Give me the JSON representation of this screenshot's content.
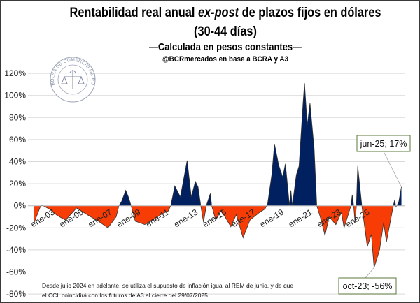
{
  "title": {
    "line1_pre": "Rentabilidad real anual ",
    "line1_italic": "ex-post",
    "line1_post": " de plazos fijos en dólares",
    "line2": "(30-44 días)",
    "subtitle": "—Calculada en pesos constantes—",
    "source": "@BCRmercados  en base a BCRA y A3"
  },
  "logo": {
    "text": "BOLSA DE COMERCIO DE ROSARIO"
  },
  "footnote": {
    "line1": "Desde julio 2024 en adelante, se utiliza el supuesto de inflación igual al REM de junio, y de que",
    "line2": "el CCL coincidirá con los futuros de A3 al cierre del  29/07/2025"
  },
  "colors": {
    "positive": "#002060",
    "negative": "#F83C06",
    "grid": "#d9d9d9",
    "annotation_border": "#5a7a3a"
  },
  "chart_data": {
    "type": "area",
    "title": "Rentabilidad real anual ex-post de plazos fijos en dólares (30-44 días)",
    "ylim": [
      -80,
      120
    ],
    "yticks": [
      -80,
      -60,
      -40,
      -20,
      0,
      20,
      40,
      60,
      80,
      100,
      120
    ],
    "ytick_labels": [
      "-80%",
      "-60%",
      "-40%",
      "-20%",
      "0%",
      "20%",
      "40%",
      "60%",
      "80%",
      "100%",
      "120%"
    ],
    "xtick_labels": [
      "ene-03",
      "ene-05",
      "ene-07",
      "ene-09",
      "ene-11",
      "ene-13",
      "ene-15",
      "ene-17",
      "ene-19",
      "ene-21",
      "ene-23",
      "ene-25"
    ],
    "grid": true,
    "unit": "%",
    "points": [
      [
        "2003-01",
        -15
      ],
      [
        "2003-06",
        1
      ],
      [
        "2003-12",
        -3
      ],
      [
        "2004-06",
        -9
      ],
      [
        "2004-12",
        -13
      ],
      [
        "2005-08",
        -2
      ],
      [
        "2006-05",
        -9
      ],
      [
        "2006-12",
        -14
      ],
      [
        "2007-07",
        -20
      ],
      [
        "2008-01",
        -10
      ],
      [
        "2008-03",
        0
      ],
      [
        "2008-05",
        4
      ],
      [
        "2008-08",
        14
      ],
      [
        "2008-10",
        8
      ],
      [
        "2008-12",
        0
      ],
      [
        "2009-03",
        -14
      ],
      [
        "2009-10",
        -17
      ],
      [
        "2010-05",
        -12
      ],
      [
        "2010-11",
        -7
      ],
      [
        "2011-03",
        -5
      ],
      [
        "2011-05",
        0
      ],
      [
        "2011-08",
        18
      ],
      [
        "2011-12",
        8
      ],
      [
        "2012-05",
        41
      ],
      [
        "2012-08",
        8
      ],
      [
        "2012-11",
        22
      ],
      [
        "2013-01",
        17
      ],
      [
        "2013-03",
        0
      ],
      [
        "2013-05",
        -15
      ],
      [
        "2013-07",
        0
      ],
      [
        "2013-10",
        11
      ],
      [
        "2013-11",
        0
      ],
      [
        "2014-02",
        -13
      ],
      [
        "2014-06",
        -4
      ],
      [
        "2015-01",
        -19
      ],
      [
        "2015-05",
        -8
      ],
      [
        "2015-10",
        -29
      ],
      [
        "2016-03",
        -13
      ],
      [
        "2016-10",
        -6
      ],
      [
        "2017-02",
        -3
      ],
      [
        "2017-04",
        2
      ],
      [
        "2017-07",
        28
      ],
      [
        "2017-09",
        56
      ],
      [
        "2017-12",
        37
      ],
      [
        "2018-03",
        26
      ],
      [
        "2018-05",
        38
      ],
      [
        "2018-08",
        0
      ],
      [
        "2018-09",
        14
      ],
      [
        "2018-10",
        0
      ],
      [
        "2019-01",
        28
      ],
      [
        "2019-03",
        36
      ],
      [
        "2019-06",
        94
      ],
      [
        "2019-07",
        111
      ],
      [
        "2019-09",
        73
      ],
      [
        "2019-11",
        93
      ],
      [
        "2020-02",
        52
      ],
      [
        "2020-04",
        0
      ],
      [
        "2020-07",
        -12
      ],
      [
        "2020-10",
        -27
      ],
      [
        "2021-01",
        -10
      ],
      [
        "2021-06",
        -17
      ],
      [
        "2021-10",
        -6
      ],
      [
        "2021-12",
        -20
      ],
      [
        "2022-03",
        -8
      ],
      [
        "2022-05",
        0
      ],
      [
        "2022-06",
        10
      ],
      [
        "2022-07",
        0
      ],
      [
        "2022-08",
        -15
      ],
      [
        "2022-09",
        0
      ],
      [
        "2022-10",
        36
      ],
      [
        "2023-01",
        0
      ],
      [
        "2023-05",
        -37
      ],
      [
        "2023-08",
        -26
      ],
      [
        "2023-10",
        -56
      ],
      [
        "2024-02",
        -40
      ],
      [
        "2024-05",
        -15
      ],
      [
        "2024-07",
        -33
      ],
      [
        "2024-12",
        0
      ],
      [
        "2025-01",
        5
      ],
      [
        "2025-02",
        -1
      ],
      [
        "2025-04",
        3
      ],
      [
        "2025-06",
        17
      ]
    ],
    "annotations": [
      {
        "label": "jun-25; 17%",
        "date": "2025-06",
        "value": 17
      },
      {
        "label": "oct-23; -56%",
        "date": "2023-10",
        "value": -56
      }
    ]
  }
}
